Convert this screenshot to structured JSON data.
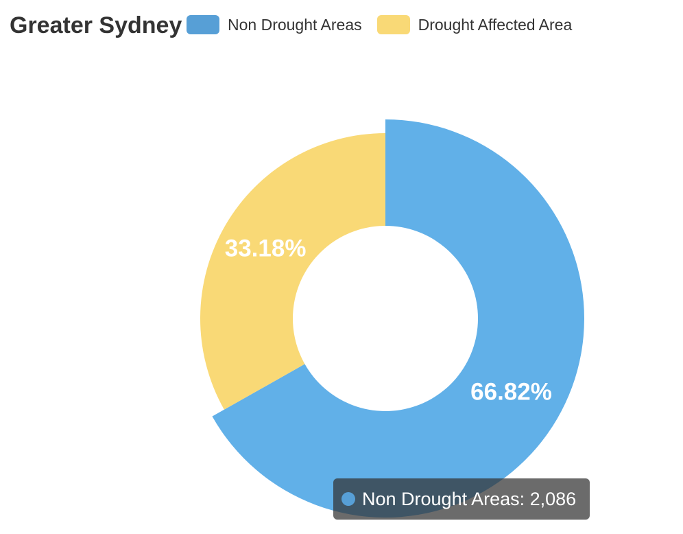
{
  "chart_data": {
    "type": "pie",
    "title": "Greater Sydney",
    "labels": [
      "Non Drought Areas",
      "Drought Affected Area"
    ],
    "percentages": [
      66.82,
      33.18
    ],
    "percent_labels": [
      "66.82%",
      "33.18%"
    ],
    "colors": [
      "#61b0e8",
      "#f9d976"
    ],
    "legend_colors": [
      "#579fd6",
      "#f9d976"
    ],
    "legend_position": "top",
    "highlighted_index": 0
  },
  "tooltip": {
    "text": "Non Drought Areas: 2,086",
    "color": "#579fd6"
  }
}
